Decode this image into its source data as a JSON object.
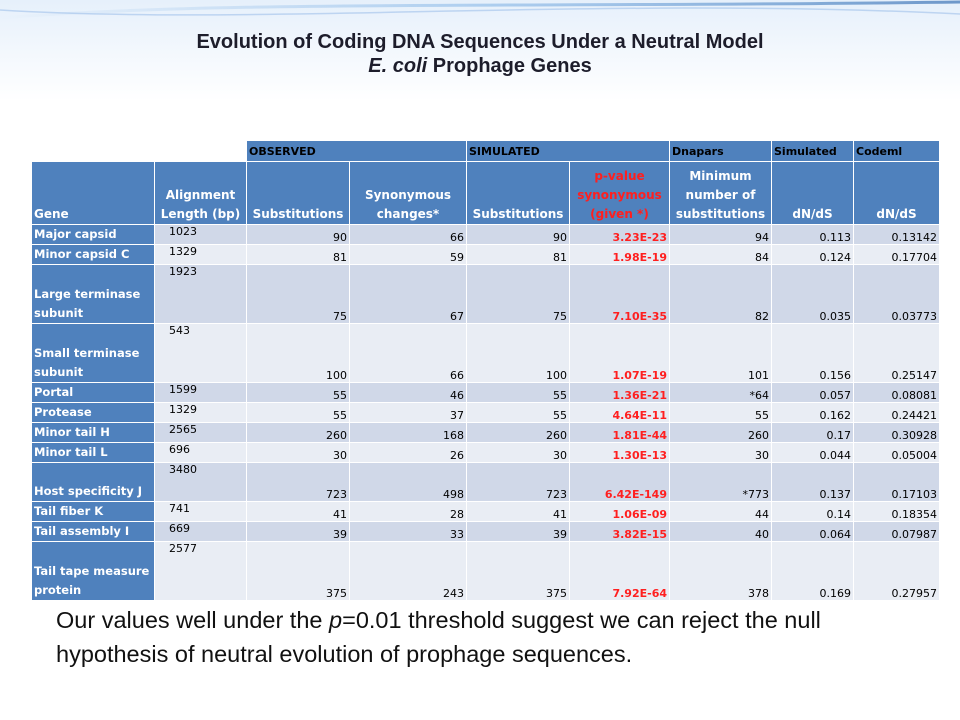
{
  "title": {
    "line1": "Evolution of Coding DNA Sequences Under a Neutral Model",
    "line2_italic": "E. coli",
    "line2_rest": " Prophage Genes"
  },
  "table": {
    "group_headers": [
      "OBSERVED",
      "SIMULATED",
      "Dnapars",
      "Simulated",
      "Codeml"
    ],
    "column_headers": [
      "Gene",
      "Alignment Length (bp)",
      "Substitutions",
      "Synonymous changes*",
      "Substitutions",
      "p-value synonymous (given *)",
      "Minimum number of substitutions",
      "dN/dS",
      "dN/dS"
    ],
    "rows": [
      {
        "gene": "Major capsid",
        "length": "1023",
        "obs_subs": "90",
        "syn": "66",
        "sim_subs": "90",
        "pvalue": "3.23E-23",
        "min_subs": "94",
        "sim_dnds": "0.113",
        "codeml_dnds": "0.13142",
        "size": "short"
      },
      {
        "gene": "Minor capsid C",
        "length": "1329",
        "obs_subs": "81",
        "syn": "59",
        "sim_subs": "81",
        "pvalue": "1.98E-19",
        "min_subs": "84",
        "sim_dnds": "0.124",
        "codeml_dnds": "0.17704",
        "size": "short"
      },
      {
        "gene": "Large terminase subunit",
        "length": "1923",
        "obs_subs": "75",
        "syn": "67",
        "sim_subs": "75",
        "pvalue": "7.10E-35",
        "min_subs": "82",
        "sim_dnds": "0.035",
        "codeml_dnds": "0.03773",
        "size": "tall"
      },
      {
        "gene": "Small terminase subunit",
        "length": "543",
        "obs_subs": "100",
        "syn": "66",
        "sim_subs": "100",
        "pvalue": "1.07E-19",
        "min_subs": "101",
        "sim_dnds": "0.156",
        "codeml_dnds": "0.25147",
        "size": "tall"
      },
      {
        "gene": "Portal",
        "length": "1599",
        "obs_subs": "55",
        "syn": "46",
        "sim_subs": "55",
        "pvalue": "1.36E-21",
        "min_subs": "*64",
        "sim_dnds": "0.057",
        "codeml_dnds": "0.08081",
        "size": "short"
      },
      {
        "gene": "Protease",
        "length": "1329",
        "obs_subs": "55",
        "syn": "37",
        "sim_subs": "55",
        "pvalue": "4.64E-11",
        "min_subs": "55",
        "sim_dnds": "0.162",
        "codeml_dnds": "0.24421",
        "size": "short"
      },
      {
        "gene": "Minor tail H",
        "length": "2565",
        "obs_subs": "260",
        "syn": "168",
        "sim_subs": "260",
        "pvalue": "1.81E-44",
        "min_subs": "260",
        "sim_dnds": "0.17",
        "codeml_dnds": "0.30928",
        "size": "short"
      },
      {
        "gene": "Minor tail L",
        "length": "696",
        "obs_subs": "30",
        "syn": "26",
        "sim_subs": "30",
        "pvalue": "1.30E-13",
        "min_subs": "30",
        "sim_dnds": "0.044",
        "codeml_dnds": "0.05004",
        "size": "short"
      },
      {
        "gene": "Host specificity J",
        "length": "3480",
        "obs_subs": "723",
        "syn": "498",
        "sim_subs": "723",
        "pvalue": "6.42E-149",
        "min_subs": "*773",
        "sim_dnds": "0.137",
        "codeml_dnds": "0.17103",
        "size": "med"
      },
      {
        "gene": "Tail fiber K",
        "length": "741",
        "obs_subs": "41",
        "syn": "28",
        "sim_subs": "41",
        "pvalue": "1.06E-09",
        "min_subs": "44",
        "sim_dnds": "0.14",
        "codeml_dnds": "0.18354",
        "size": "short"
      },
      {
        "gene": "Tail assembly I",
        "length": "669",
        "obs_subs": "39",
        "syn": "33",
        "sim_subs": "39",
        "pvalue": "3.82E-15",
        "min_subs": "40",
        "sim_dnds": "0.064",
        "codeml_dnds": "0.07987",
        "size": "short"
      },
      {
        "gene": "Tail tape measure protein",
        "length": "2577",
        "obs_subs": "375",
        "syn": "243",
        "sim_subs": "375",
        "pvalue": "7.92E-64",
        "min_subs": "378",
        "sim_dnds": "0.169",
        "codeml_dnds": "0.27957",
        "size": "tall"
      }
    ]
  },
  "conclusion": {
    "part1": "Our values well under the ",
    "p_italic": "p",
    "part2": "=0.01 threshold suggest we can reject the null hypothesis of neutral evolution of prophage sequences."
  },
  "colors": {
    "header_blue": "#4f81bd",
    "row_light": "#e9edf4",
    "row_dark": "#d0d8e8",
    "pvalue_red": "#ff1f1f"
  }
}
